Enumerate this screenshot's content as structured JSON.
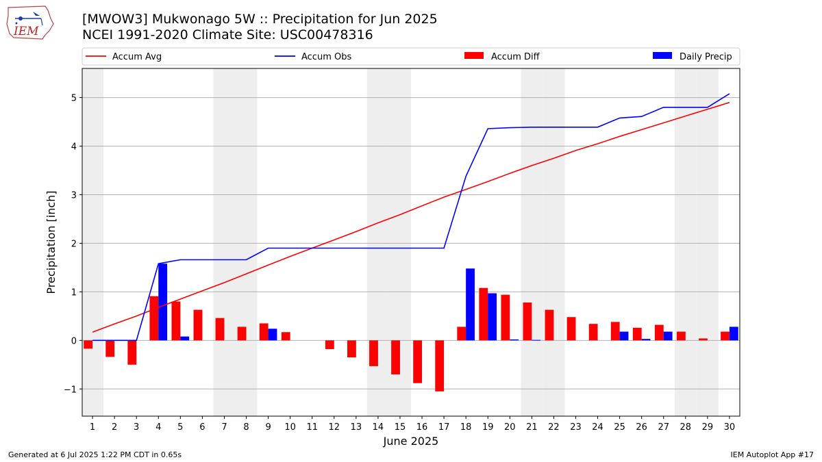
{
  "header": {
    "title_line1": "[MWOW3] Mukwonago 5W :: Precipitation for Jun 2025",
    "title_line2": "NCEI 1991-2020 Climate Site: USC00478316"
  },
  "logo": {
    "text": "IEM"
  },
  "footer": {
    "generated": "Generated at 6 Jul 2025 1:22 PM CDT in 0.65s",
    "app": "IEM Autoplot App #17"
  },
  "colors": {
    "avg": "#ff0000",
    "obs": "#0000ff",
    "diff": "#ff0000",
    "daily": "#0000ff",
    "weekend": "#eeeeee",
    "grid": "#b0b0b0"
  },
  "chart_data": {
    "type": "bar",
    "xlabel": "June 2025",
    "ylabel": "Precipitation [inch]",
    "ylim": [
      -1.56,
      5.6
    ],
    "yticks": [
      -1,
      0,
      1,
      2,
      3,
      4,
      5
    ],
    "ytick_labels": [
      "−1",
      "0",
      "1",
      "2",
      "3",
      "4",
      "5"
    ],
    "grid": "horizontal",
    "legend_position": "top",
    "days": [
      1,
      2,
      3,
      4,
      5,
      6,
      7,
      8,
      9,
      10,
      11,
      12,
      13,
      14,
      15,
      16,
      17,
      18,
      19,
      20,
      21,
      22,
      23,
      24,
      25,
      26,
      27,
      28,
      29,
      30
    ],
    "shaded_weekend_days": [
      1,
      7,
      8,
      14,
      15,
      21,
      22,
      28,
      29
    ],
    "series": [
      {
        "name": "Accum Avg",
        "kind": "line",
        "values": [
          0.17,
          0.34,
          0.5,
          0.68,
          0.85,
          1.02,
          1.19,
          1.37,
          1.55,
          1.73,
          1.9,
          2.07,
          2.24,
          2.42,
          2.59,
          2.77,
          2.95,
          3.11,
          3.27,
          3.44,
          3.6,
          3.75,
          3.91,
          4.05,
          4.2,
          4.34,
          4.48,
          4.62,
          4.76,
          4.9
        ]
      },
      {
        "name": "Accum Obs",
        "kind": "line",
        "values": [
          0.0,
          0.0,
          0.0,
          1.58,
          1.66,
          1.66,
          1.66,
          1.66,
          1.9,
          1.9,
          1.9,
          1.9,
          1.9,
          1.9,
          1.9,
          1.9,
          1.9,
          3.38,
          4.36,
          4.38,
          4.39,
          4.39,
          4.39,
          4.39,
          4.58,
          4.61,
          4.8,
          4.8,
          4.8,
          5.08
        ]
      },
      {
        "name": "Accum Diff",
        "kind": "bar",
        "values": [
          -0.17,
          -0.34,
          -0.5,
          0.91,
          0.8,
          0.63,
          0.46,
          0.28,
          0.35,
          0.17,
          0.0,
          -0.18,
          -0.35,
          -0.53,
          -0.7,
          -0.88,
          -1.05,
          0.28,
          1.08,
          0.94,
          0.78,
          0.63,
          0.48,
          0.34,
          0.38,
          0.26,
          0.32,
          0.18,
          0.04,
          0.18
        ]
      },
      {
        "name": "Daily Precip",
        "kind": "bar",
        "values": [
          0,
          0,
          0,
          1.58,
          0.08,
          0,
          0,
          0,
          0.24,
          0,
          0,
          0,
          0,
          0,
          0,
          0,
          0,
          1.48,
          0.97,
          0.02,
          0.01,
          0,
          0,
          0,
          0.18,
          0.03,
          0.18,
          0,
          0,
          0.28
        ]
      }
    ]
  }
}
